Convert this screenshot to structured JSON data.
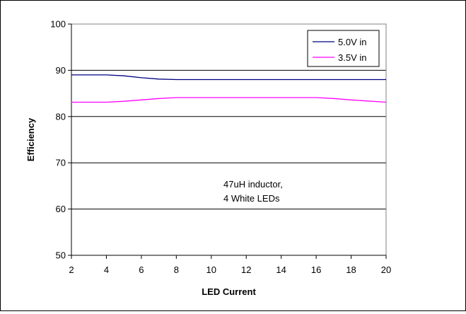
{
  "chart_data": {
    "type": "line",
    "title": "",
    "xlabel": "LED Current",
    "ylabel": "Efficiency",
    "xlim": [
      2,
      20
    ],
    "ylim": [
      50,
      100
    ],
    "xticks": [
      "2",
      "4",
      "6",
      "8",
      "10",
      "12",
      "14",
      "16",
      "18",
      "20"
    ],
    "yticks": [
      "50",
      "60",
      "70",
      "80",
      "90",
      "100"
    ],
    "grid": "horizontal",
    "legend_position": "top-right",
    "annotation": [
      "47uH inductor,",
      "4 White LEDs"
    ],
    "series": [
      {
        "name": "5.0V in",
        "color": "#000080",
        "x": [
          2,
          3,
          4,
          5,
          6,
          7,
          8,
          10,
          12,
          14,
          16,
          18,
          20
        ],
        "y": [
          89,
          89,
          89,
          88.8,
          88.4,
          88.1,
          88,
          88,
          88,
          88,
          88,
          88,
          88
        ]
      },
      {
        "name": "3.5V in",
        "color": "#ff00ff",
        "x": [
          2,
          3,
          4,
          5,
          6,
          7,
          8,
          10,
          12,
          14,
          16,
          17,
          18,
          20
        ],
        "y": [
          83.1,
          83.1,
          83.1,
          83.3,
          83.6,
          83.9,
          84.1,
          84.1,
          84.1,
          84.1,
          84.1,
          83.9,
          83.6,
          83.1
        ]
      }
    ]
  }
}
